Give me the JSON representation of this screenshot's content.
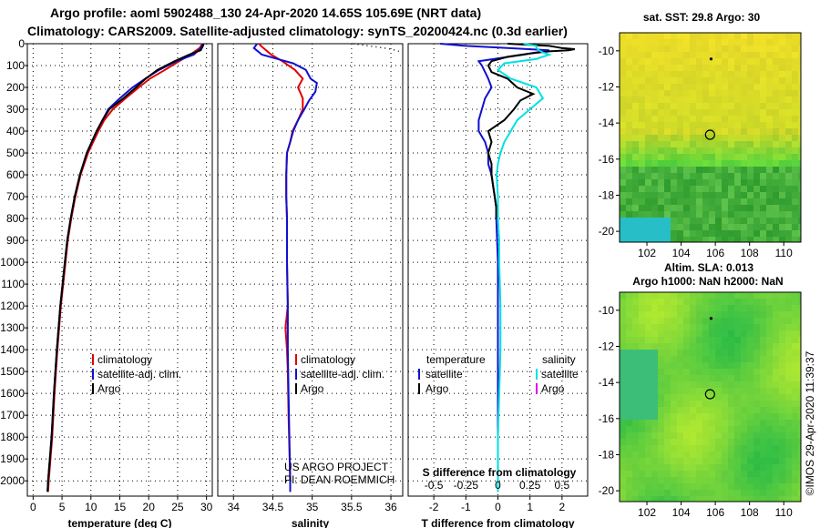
{
  "header": {
    "line1": "Argo profile: aoml 5902488_130 24-Apr-2020 14.65S 105.69E (NRT data)",
    "line2": "Climatology: CARS2009. Satellite-adjusted climatology: synTS_20200424.nc (0.3d earlier)"
  },
  "colors": {
    "climatology": "#e00000",
    "satellite": "#1010d0",
    "argo": "#000000",
    "satellite_s": "#00e0e0",
    "argo_s": "#e000e0"
  },
  "chart_data": [
    {
      "type": "line",
      "id": "temperature",
      "xlabel": "temperature (deg C)",
      "xlim": [
        -1,
        31
      ],
      "xticks": [
        0,
        5,
        10,
        15,
        20,
        25,
        30
      ],
      "ylim": [
        2070,
        0
      ],
      "yticks": [
        0,
        100,
        200,
        300,
        400,
        500,
        600,
        700,
        800,
        900,
        1000,
        1100,
        1200,
        1300,
        1400,
        1500,
        1600,
        1700,
        1800,
        1900,
        2000
      ],
      "legend": [
        "climatology",
        "satellite-adj. clim.",
        "Argo"
      ],
      "series": [
        {
          "name": "climatology",
          "depth": [
            0,
            20,
            50,
            80,
            120,
            160,
            200,
            250,
            300,
            350,
            400,
            500,
            600,
            700,
            800,
            900,
            1000,
            1200,
            1400,
            1600,
            1800,
            2000,
            2050
          ],
          "values": [
            29.3,
            28.8,
            27.2,
            25.3,
            22.8,
            20.2,
            18.3,
            16.0,
            13.8,
            12.3,
            11.3,
            9.5,
            8.2,
            7.3,
            6.6,
            6.0,
            5.6,
            4.8,
            4.2,
            3.7,
            3.3,
            2.7,
            2.6
          ]
        },
        {
          "name": "satellite-adj. clim.",
          "depth": [
            0,
            20,
            50,
            80,
            120,
            160,
            200,
            250,
            300,
            350,
            400,
            500,
            600,
            700,
            800,
            900,
            1000,
            1200,
            1400,
            1600,
            1800,
            2000,
            2050
          ],
          "values": [
            29.4,
            29.0,
            27.8,
            24.8,
            21.8,
            19.4,
            17.2,
            15.0,
            13.0,
            12.0,
            11.0,
            9.3,
            8.1,
            7.2,
            6.5,
            5.9,
            5.5,
            4.7,
            4.1,
            3.6,
            3.2,
            2.6,
            2.5
          ]
        },
        {
          "name": "Argo",
          "depth": [
            0,
            10,
            30,
            50,
            80,
            120,
            160,
            200,
            250,
            300,
            350,
            400,
            500,
            600,
            700,
            800,
            900,
            1000,
            1200,
            1400,
            1600,
            1800,
            2000,
            2050
          ],
          "values": [
            29.5,
            29.4,
            29.0,
            27.0,
            24.5,
            21.5,
            19.5,
            17.8,
            15.6,
            13.2,
            12.0,
            11.0,
            9.3,
            8.1,
            7.2,
            6.5,
            5.9,
            5.5,
            4.7,
            4.1,
            3.6,
            3.2,
            2.6,
            2.5
          ]
        }
      ]
    },
    {
      "type": "line",
      "id": "salinity",
      "xlabel": "salinity",
      "xlim": [
        33.8,
        36.15
      ],
      "xticks": [
        34,
        34.5,
        35,
        35.5,
        36
      ],
      "ylim": [
        2070,
        0
      ],
      "legend": [
        "climatology",
        "satellite-adj. clim.",
        "Argo"
      ],
      "credit": [
        "US ARGO PROJECT",
        "PI: DEAN ROEMMICH"
      ],
      "series": [
        {
          "name": "climatology",
          "depth": [
            0,
            20,
            50,
            80,
            120,
            160,
            200,
            250,
            300,
            350,
            400,
            450,
            500,
            600,
            700,
            800,
            1000,
            1200,
            1300,
            1400,
            1500,
            1700,
            2000,
            2050
          ],
          "values": [
            34.32,
            34.38,
            34.48,
            34.62,
            34.78,
            34.88,
            34.82,
            34.88,
            34.88,
            34.82,
            34.75,
            34.72,
            34.68,
            34.67,
            34.67,
            34.68,
            34.68,
            34.69,
            34.66,
            34.68,
            34.69,
            34.7,
            34.72,
            34.72
          ]
        },
        {
          "name": "satellite-adj. clim.",
          "depth": [
            0,
            20,
            50,
            70,
            90,
            120,
            160,
            180,
            220,
            260,
            300,
            350,
            400,
            450,
            500,
            600,
            700,
            800,
            1000,
            1200,
            1400,
            1600,
            1800,
            2000,
            2050
          ],
          "values": [
            34.3,
            34.26,
            34.36,
            34.56,
            34.76,
            34.92,
            34.98,
            35.06,
            35.04,
            34.96,
            34.9,
            34.82,
            34.76,
            34.72,
            34.68,
            34.67,
            34.67,
            34.68,
            34.68,
            34.69,
            34.69,
            34.7,
            34.71,
            34.72,
            34.72
          ]
        },
        {
          "name": "Argo",
          "depth": [
            0,
            5,
            10,
            15,
            20,
            25,
            30,
            35
          ],
          "values": [
            35.52,
            35.62,
            35.72,
            35.82,
            35.92,
            36.0,
            36.06,
            36.1
          ]
        }
      ]
    },
    {
      "type": "line",
      "id": "difference",
      "xlabel": "T difference from climatology",
      "xlabel_top": "S difference from climatology",
      "xlim": [
        -2.8,
        2.8
      ],
      "xticks": [
        -2,
        -1,
        0,
        1,
        2
      ],
      "xticks_s_labels": [
        "-0.5",
        "-0.25",
        "0",
        "0.25",
        "0.5"
      ],
      "ylim": [
        2070,
        0
      ],
      "legend_left_title": "temperature",
      "legend_right_title": "salinity",
      "legend_left": [
        "satellite",
        "Argo"
      ],
      "legend_right": [
        "satellite",
        "Argo"
      ],
      "series": [
        {
          "name": "T satellite",
          "depth": [
            0,
            10,
            20,
            30,
            50,
            80,
            100,
            130,
            160,
            200,
            250,
            300,
            350,
            400,
            450,
            500,
            550,
            600,
            650,
            700,
            750,
            800,
            1000,
            1200,
            1400,
            1600,
            1800,
            2000,
            2050
          ],
          "values": [
            -1.8,
            -1.0,
            0.3,
            1.6,
            0.8,
            -0.6,
            -0.5,
            -0.4,
            -0.3,
            -0.2,
            -0.4,
            -0.5,
            -0.6,
            -0.6,
            -0.4,
            -0.3,
            -0.3,
            -0.2,
            -0.15,
            -0.1,
            -0.05,
            -0.05,
            0,
            0,
            0,
            0,
            0,
            0,
            0
          ]
        },
        {
          "name": "T Argo",
          "depth": [
            0,
            10,
            20,
            25,
            30,
            35,
            45,
            60,
            80,
            100,
            130,
            160,
            200,
            230,
            260,
            300,
            350,
            400,
            450,
            500,
            550,
            600,
            650,
            700,
            750,
            800
          ],
          "values": [
            0.3,
            1.6,
            2.0,
            2.4,
            2.2,
            1.6,
            1.0,
            0.3,
            -0.2,
            -0.3,
            -0.2,
            0.3,
            0.6,
            1.1,
            0.7,
            0.5,
            0.2,
            -0.3,
            -0.2,
            -0.3,
            -0.2,
            -0.2,
            -0.15,
            -0.1,
            -0.05,
            -0.05
          ]
        },
        {
          "name": "S satellite",
          "depth": [
            0,
            10,
            20,
            30,
            40,
            50,
            70,
            90,
            120,
            160,
            200,
            250,
            300,
            350,
            400,
            450,
            500,
            550,
            600,
            700,
            800,
            900,
            1000,
            1200,
            1400,
            1600,
            1800,
            2000,
            2050
          ],
          "values": [
            0.2,
            0.3,
            0.3,
            0.32,
            0.35,
            0.4,
            0.3,
            0.05,
            0.0,
            0.1,
            0.3,
            0.35,
            0.25,
            0.15,
            0.1,
            0.05,
            0.02,
            0.0,
            -0.01,
            0.0,
            0.0,
            0.01,
            0.01,
            0.02,
            0.02,
            0.01,
            0.0,
            0.0,
            0.0
          ]
        }
      ]
    }
  ],
  "maps": [
    {
      "id": "sst",
      "title": "sat. SST: 29.8 Argo: 30",
      "xticks": [
        "102",
        "104",
        "106",
        "108",
        "110"
      ],
      "yticks": [
        "-10",
        "-12",
        "-14",
        "-16",
        "-18",
        "-20"
      ],
      "lon_range": [
        100.4,
        111.0
      ],
      "lat_range": [
        -20.6,
        -9.0
      ],
      "marker_lon": 105.69,
      "marker_lat": -14.65,
      "point_lon": 105.75,
      "point_lat": -10.45
    },
    {
      "id": "sla",
      "title_line1": "Altim. SLA: 0.013",
      "title_line2": "Argo h1000: NaN h2000: NaN",
      "xticks": [
        "102",
        "104",
        "106",
        "108",
        "110"
      ],
      "yticks": [
        "-10",
        "-12",
        "-14",
        "-16",
        "-18",
        "-20"
      ],
      "lon_range": [
        100.4,
        111.0
      ],
      "lat_range": [
        -20.6,
        -9.0
      ],
      "marker_lon": 105.69,
      "marker_lat": -14.65,
      "point_lon": 105.75,
      "point_lat": -10.45
    }
  ],
  "footer": {
    "imos": "©IMOS 29-Apr-2020 11:39:37"
  }
}
